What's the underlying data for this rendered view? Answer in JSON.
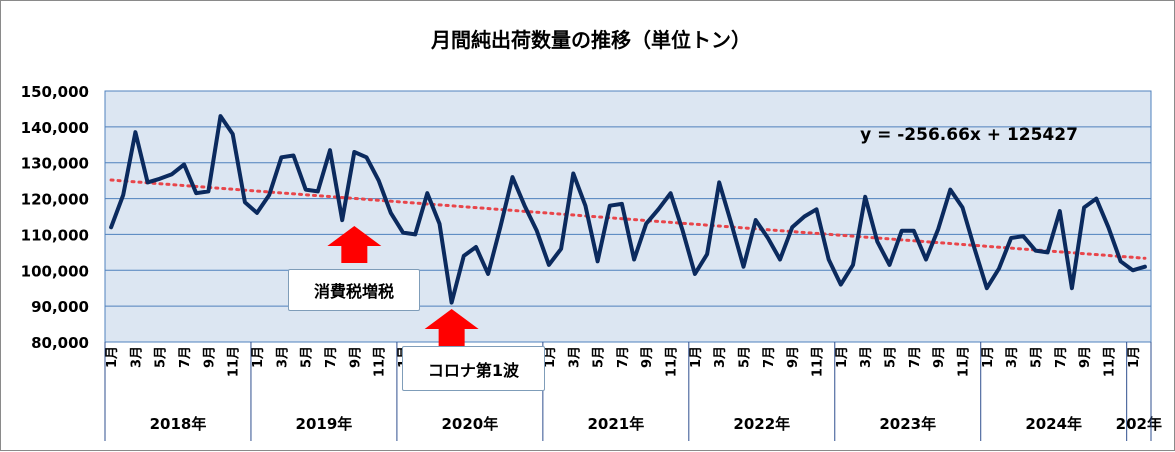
{
  "chart_data": {
    "type": "line",
    "title": "月間純出荷数量の推移（単位トン）",
    "ylim": [
      80000,
      150000
    ],
    "y_ticks": [
      "80,000",
      "90,000",
      "100,000",
      "110,000",
      "120,000",
      "130,000",
      "140,000",
      "150,000"
    ],
    "y_tick_values": [
      80000,
      90000,
      100000,
      110000,
      120000,
      130000,
      140000,
      150000
    ],
    "grid": true,
    "month_labels": [
      "1月",
      "3月",
      "5月",
      "7月",
      "9月",
      "11月"
    ],
    "years": [
      {
        "label": "2018年",
        "start": 1,
        "months": 12
      },
      {
        "label": "2019年",
        "start": 13,
        "months": 12
      },
      {
        "label": "2020年",
        "start": 25,
        "months": 12
      },
      {
        "label": "2021年",
        "start": 37,
        "months": 12
      },
      {
        "label": "2022年",
        "start": 49,
        "months": 12
      },
      {
        "label": "2023年",
        "start": 61,
        "months": 12
      },
      {
        "label": "2024年",
        "start": 73,
        "months": 12
      },
      {
        "label": "202年",
        "start": 85,
        "months": 2
      }
    ],
    "series": [
      {
        "color": "#0b2a5e",
        "values": [
          112000,
          121000,
          138500,
          124500,
          125500,
          126800,
          129500,
          121500,
          122000,
          143000,
          138000,
          119000,
          116000,
          121000,
          131500,
          132000,
          122500,
          122000,
          133500,
          114000,
          133000,
          131500,
          125000,
          116000,
          110500,
          110000,
          121500,
          113000,
          91000,
          104000,
          106500,
          99000,
          112000,
          126000,
          118000,
          111000,
          101500,
          106000,
          127000,
          118000,
          102500,
          118000,
          118500,
          103000,
          113000,
          117000,
          121500,
          111000,
          99000,
          104500,
          124500,
          113000,
          101000,
          114000,
          109000,
          103000,
          112000,
          115000,
          117000,
          103000,
          96000,
          101500,
          120500,
          108000,
          101500,
          111000,
          111000,
          103000,
          111500,
          122500,
          117500,
          106000,
          95000,
          100500,
          109000,
          109500,
          105500,
          105000,
          116500,
          95000,
          117500,
          120000,
          112000,
          102500,
          100000,
          101000
        ]
      }
    ],
    "trendline": {
      "slope": -256.66,
      "intercept": 125427,
      "style": "dotted",
      "color": "#e8454a",
      "equation_label": "y = -256.66x + 125427"
    },
    "annotations": [
      {
        "text": "消費税増税",
        "x_month": 21
      },
      {
        "text": "コロナ第1波",
        "x_month": 29
      }
    ],
    "colors": {
      "plot_background": "#dce6f2",
      "grid": "#4f81bd",
      "arrow": "#ff0000"
    }
  }
}
